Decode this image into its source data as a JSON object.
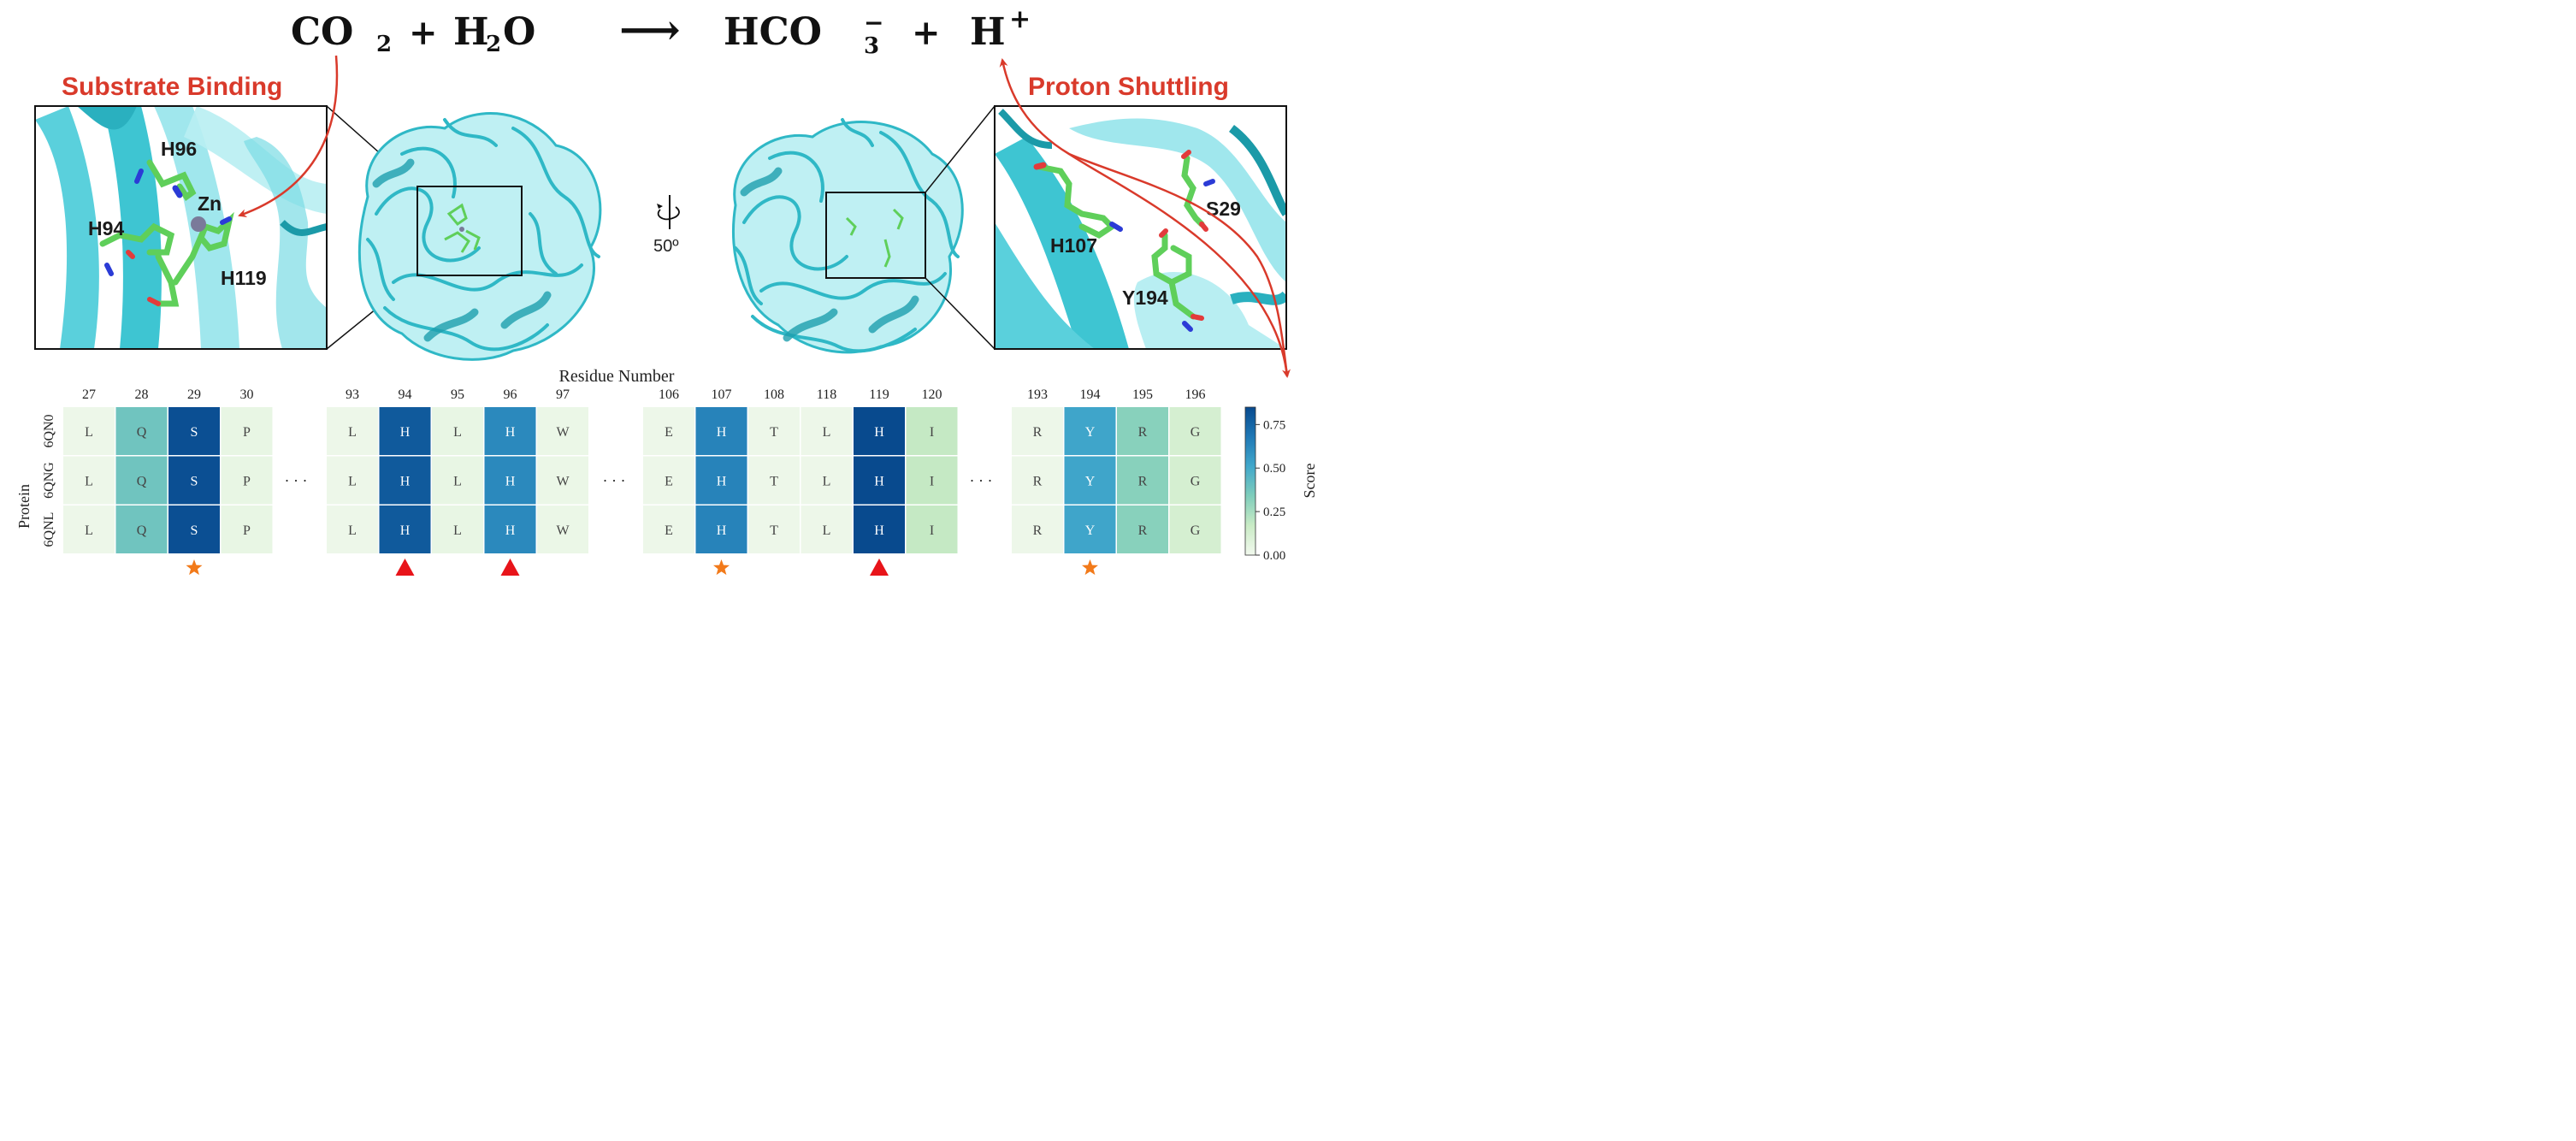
{
  "equation": {
    "lhs": "CO",
    "lhs_sub": "2",
    "plus1": "+",
    "h2o_h": "H",
    "h2o_sub": "2",
    "h2o_o": "O",
    "arrow": "⟶",
    "prod_hco": "HCO",
    "prod_sup": "−",
    "prod_sub": "3",
    "plus2": "+",
    "prod_h": "H",
    "prod_h_sup": "+"
  },
  "left_panel": {
    "title": "Substrate Binding",
    "labels": [
      "H96",
      "Zn",
      "H94",
      "H119"
    ]
  },
  "right_panel": {
    "title": "Proton Shuttling",
    "labels": [
      "S29",
      "H107",
      "Y194"
    ]
  },
  "rotation_label": "50º",
  "heatmap": {
    "x_title": "Residue Number",
    "y_title": "Protein",
    "proteins": [
      "6QN0",
      "6QNG",
      "6QNL"
    ],
    "ellipsis": "· · ·",
    "colorbar": {
      "label": "Score",
      "min": 0.0,
      "max": 0.85,
      "ticks": [
        "0.00",
        "0.25",
        "0.50",
        "0.75"
      ],
      "colors": [
        "#f2f9ee",
        "#c9ebc5",
        "#7fcdbb",
        "#41a8cb",
        "#1f78b5",
        "#084a8e"
      ]
    },
    "groups": [
      {
        "residues": [
          "27",
          "28",
          "29",
          "30"
        ],
        "letters": [
          "L",
          "Q",
          "S",
          "P"
        ],
        "scores": [
          0.02,
          0.38,
          0.83,
          0.04
        ],
        "markers": [
          "",
          "",
          "star",
          ""
        ]
      },
      {
        "residues": [
          "93",
          "94",
          "95",
          "96",
          "97"
        ],
        "letters": [
          "L",
          "H",
          "L",
          "H",
          "W"
        ],
        "scores": [
          0.02,
          0.79,
          0.04,
          0.62,
          0.03
        ],
        "markers": [
          "",
          "triangle",
          "",
          "triangle",
          ""
        ]
      },
      {
        "residues": [
          "106",
          "107",
          "108",
          "118",
          "119",
          "120"
        ],
        "letters": [
          "E",
          "H",
          "T",
          "L",
          "H",
          "I"
        ],
        "scores": [
          0.02,
          0.64,
          0.02,
          0.02,
          0.85,
          0.18
        ],
        "markers": [
          "",
          "star",
          "",
          "",
          "triangle",
          ""
        ]
      },
      {
        "residues": [
          "193",
          "194",
          "195",
          "196"
        ],
        "letters": [
          "R",
          "Y",
          "R",
          "G"
        ],
        "scores": [
          0.02,
          0.52,
          0.32,
          0.12
        ],
        "markers": [
          "",
          "star",
          "",
          ""
        ]
      }
    ],
    "marker_colors": {
      "star": "#f27a1a",
      "triangle": "#e8141a"
    }
  },
  "colors": {
    "protein_cyan": "#3ec5d2",
    "protein_light": "#8fe3ea",
    "residue_green": "#5fcf5a",
    "arrow_red": "#d93a2b"
  }
}
